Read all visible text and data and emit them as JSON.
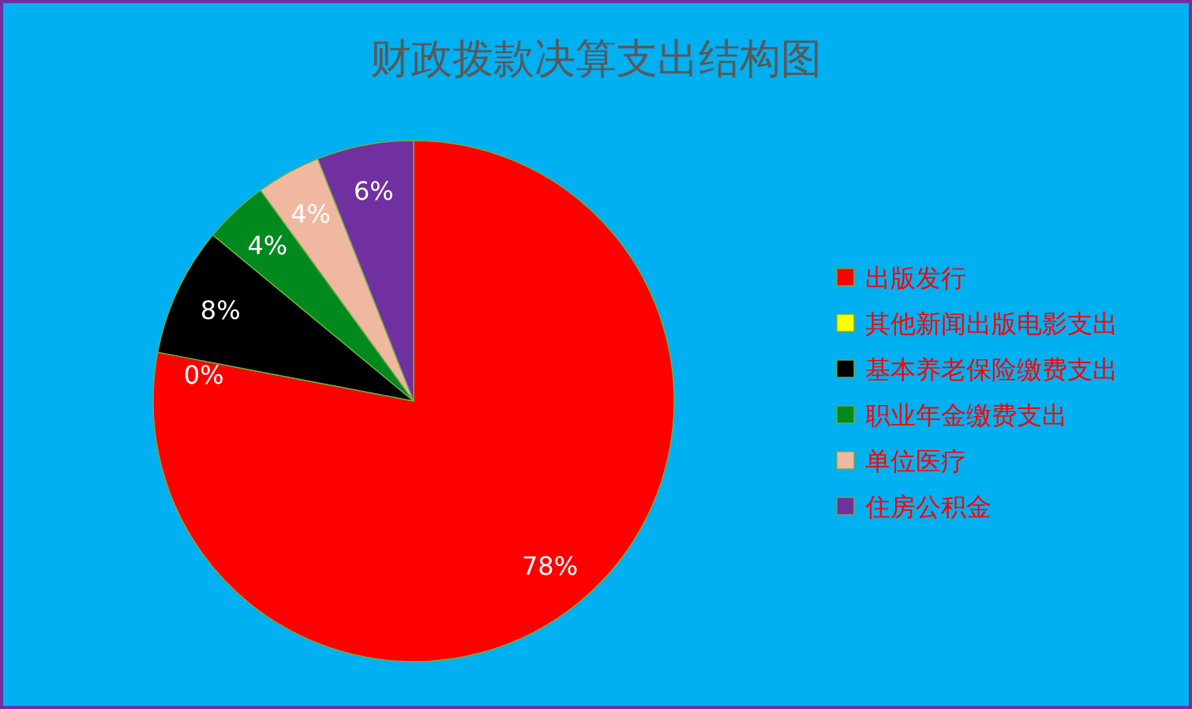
{
  "chart_data": {
    "type": "pie",
    "title": "财政拨款决算支出结构图",
    "categories": [
      "出版发行",
      "其他新闻出版电影支出",
      "基本养老保险缴费支出",
      "职业年金缴费支出",
      "单位医疗",
      "住房公积金"
    ],
    "values": [
      78,
      0,
      8,
      4,
      4,
      6
    ],
    "colors": [
      "#ff0000",
      "#ffff00",
      "#000000",
      "#008a1e",
      "#f0b8a0",
      "#7030a0"
    ],
    "value_labels": [
      "78%",
      "0%",
      "8%",
      "4%",
      "4%",
      "6%"
    ],
    "legend": "right"
  }
}
